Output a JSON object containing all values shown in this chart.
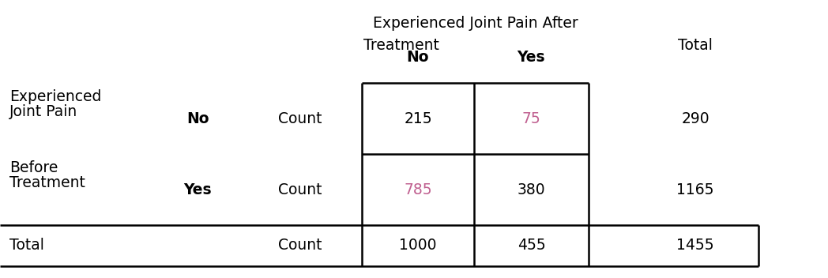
{
  "title_line1": "Experienced Joint Pain After",
  "title_line2": "Treatment",
  "title_total": "Total",
  "col_headers": [
    "No",
    "Yes"
  ],
  "row_label_lines": [
    "Experienced",
    "Joint Pain",
    "Before",
    "Treatment"
  ],
  "row1_label": "No",
  "row2_label": "Yes",
  "row_type_label": "Count",
  "row1_values": [
    "215",
    "75",
    "290"
  ],
  "row2_values": [
    "785",
    "380",
    "1165"
  ],
  "total_values": [
    "1000",
    "455",
    "1455"
  ],
  "highlight_color": "#C06090",
  "normal_color": "#000000",
  "background": "#ffffff",
  "font_size": 13.5,
  "total_left_label": "Total"
}
